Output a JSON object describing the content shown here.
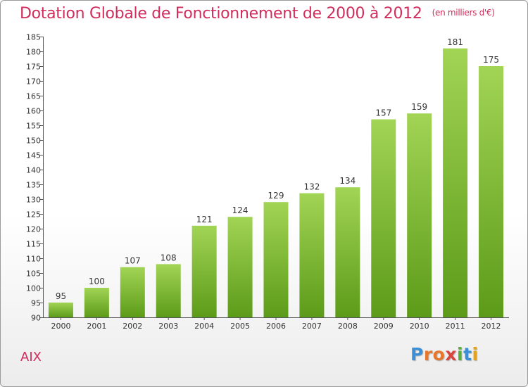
{
  "header": {
    "title": "Dotation Globale de Fonctionnement de 2000 à 2012",
    "unit": "(en milliers d'€)"
  },
  "footer": {
    "city": "AIX",
    "logo": "Proxiti"
  },
  "colors": {
    "title": "#d12d5c",
    "bar_light": "#9fd152",
    "bar_dark": "#5d9c1a",
    "axis": "#333333"
  },
  "chart_data": {
    "type": "bar",
    "categories": [
      "2000",
      "2001",
      "2002",
      "2003",
      "2004",
      "2005",
      "2006",
      "2007",
      "2008",
      "2009",
      "2010",
      "2011",
      "2012"
    ],
    "values": [
      95,
      100,
      107,
      108,
      121,
      124,
      129,
      132,
      134,
      157,
      159,
      181,
      175
    ],
    "ylim": [
      90,
      185
    ],
    "yticks": [
      90,
      95,
      100,
      105,
      110,
      115,
      120,
      125,
      130,
      135,
      140,
      145,
      150,
      155,
      160,
      165,
      170,
      175,
      180,
      185
    ],
    "grid": false,
    "data_labels": true
  }
}
